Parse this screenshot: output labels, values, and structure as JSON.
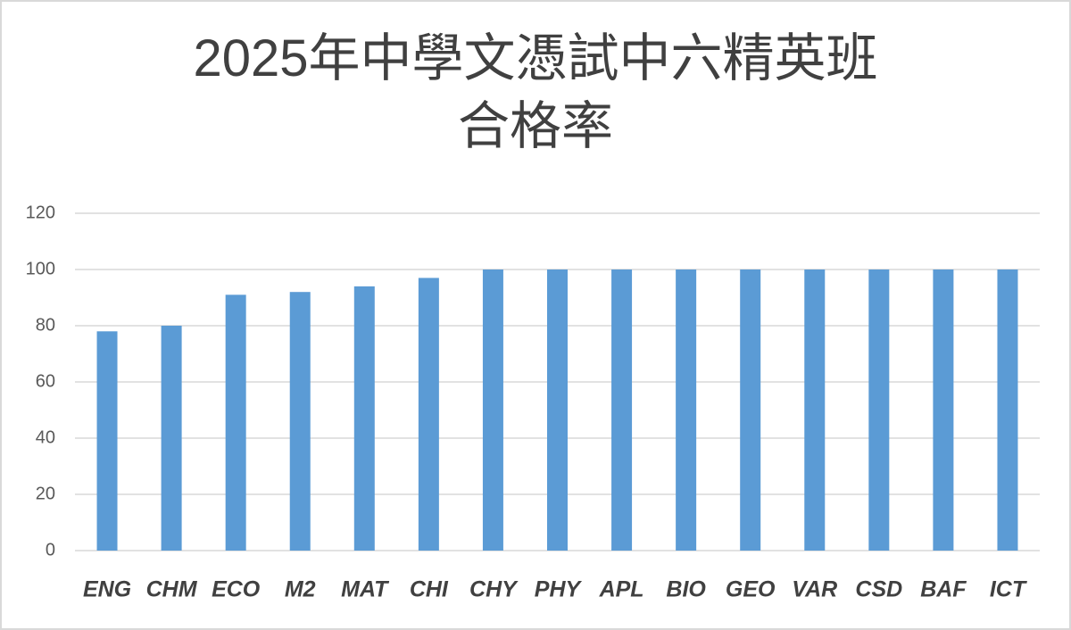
{
  "chart_data": {
    "type": "bar",
    "title": "2025年中學文憑試中六精英班\n合格率",
    "categories": [
      "ENG",
      "CHM",
      "ECO",
      "M2",
      "MAT",
      "CHI",
      "CHY",
      "PHY",
      "APL",
      "BIO",
      "GEO",
      "VAR",
      "CSD",
      "BAF",
      "ICT"
    ],
    "values": [
      78,
      80,
      91,
      92,
      94,
      97,
      100,
      100,
      100,
      100,
      100,
      100,
      100,
      100,
      100
    ],
    "color": "#5b9bd5",
    "ylim": [
      0,
      120
    ],
    "yticks": [
      0,
      20,
      40,
      60,
      80,
      100,
      120
    ],
    "grid": true
  }
}
